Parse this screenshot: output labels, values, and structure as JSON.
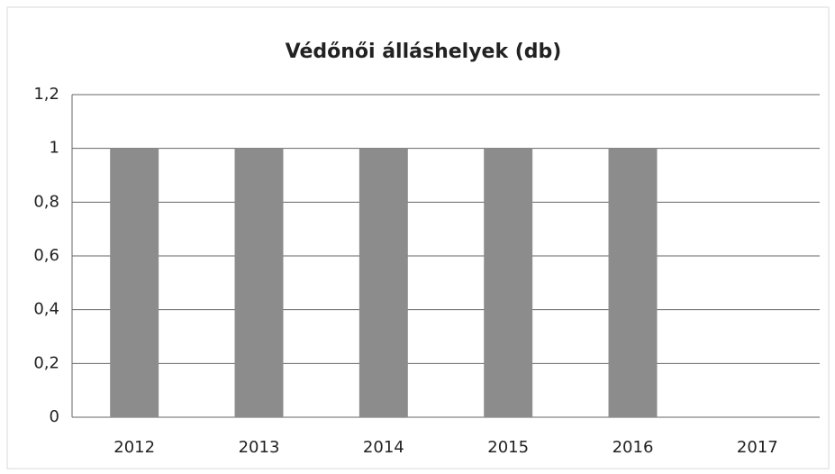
{
  "chart_data": {
    "type": "bar",
    "title": "Védőnői álláshelyek (db)",
    "categories": [
      "2012",
      "2013",
      "2014",
      "2015",
      "2016",
      "2017"
    ],
    "values": [
      1,
      1,
      1,
      1,
      1,
      0
    ],
    "color": "#8c8c8c",
    "ylim": [
      0,
      1.2
    ],
    "yticks": [
      0,
      {
        "value": 0.2,
        "label": "0,2"
      },
      {
        "value": 0.4,
        "label": "0,4"
      },
      {
        "value": 0.6,
        "label": "0,6"
      },
      {
        "value": 0.8,
        "label": "0,8"
      },
      1,
      {
        "value": 1.2,
        "label": "1,2"
      }
    ],
    "grid": true
  }
}
